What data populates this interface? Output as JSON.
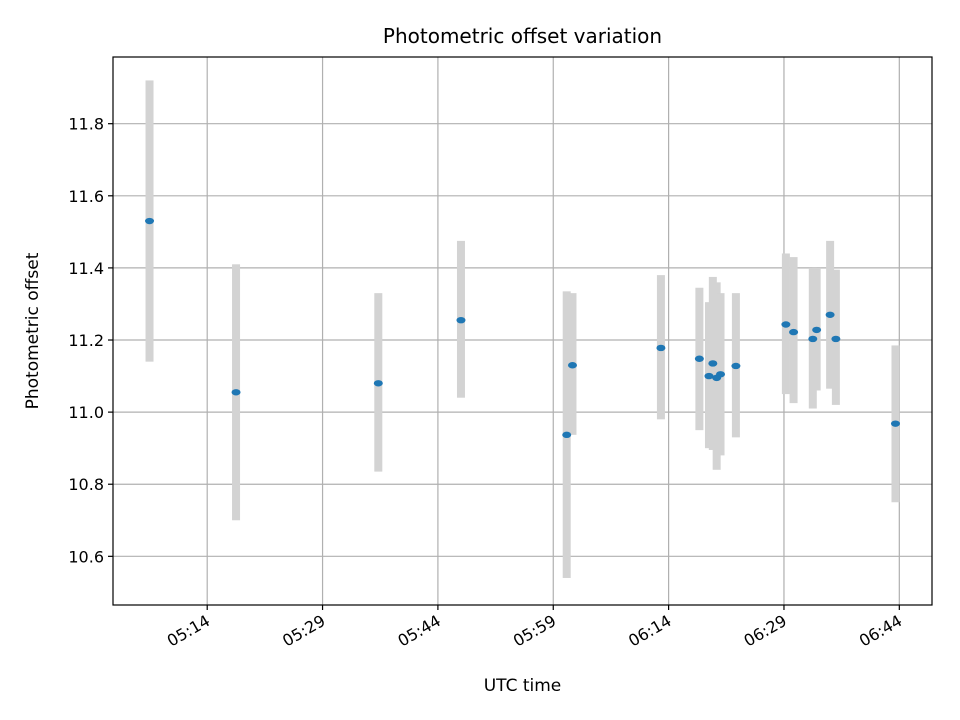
{
  "chart_data": {
    "type": "scatter",
    "title": "Photometric offset variation",
    "xlabel": "UTC time",
    "ylabel": "Photometric offset",
    "xlim": [
      "05:01:45",
      "06:48:15"
    ],
    "ylim": [
      10.465,
      11.985
    ],
    "grid": true,
    "x_ticks": [
      "05:14",
      "05:29",
      "05:44",
      "05:59",
      "06:14",
      "06:29",
      "06:44"
    ],
    "y_ticks": [
      "10.6",
      "10.8",
      "11.0",
      "11.2",
      "11.4",
      "11.6",
      "11.8"
    ],
    "points": [
      {
        "t": "05:06:30",
        "y": 11.53,
        "lo": 11.14,
        "hi": 11.92
      },
      {
        "t": "05:17:45",
        "y": 11.055,
        "lo": 10.7,
        "hi": 11.41
      },
      {
        "t": "05:36:15",
        "y": 11.08,
        "lo": 10.835,
        "hi": 11.33
      },
      {
        "t": "05:47:00",
        "y": 11.255,
        "lo": 11.04,
        "hi": 11.475
      },
      {
        "t": "06:00:45",
        "y": 10.937,
        "lo": 10.54,
        "hi": 11.335
      },
      {
        "t": "06:01:30",
        "y": 11.13,
        "lo": 10.937,
        "hi": 11.33
      },
      {
        "t": "06:13:00",
        "y": 11.178,
        "lo": 10.98,
        "hi": 11.38
      },
      {
        "t": "06:18:00",
        "y": 11.148,
        "lo": 10.95,
        "hi": 11.345
      },
      {
        "t": "06:19:15",
        "y": 11.1,
        "lo": 10.9,
        "hi": 11.305
      },
      {
        "t": "06:19:45",
        "y": 11.135,
        "lo": 10.895,
        "hi": 11.375
      },
      {
        "t": "06:20:15",
        "y": 11.095,
        "lo": 10.84,
        "hi": 11.36
      },
      {
        "t": "06:20:45",
        "y": 11.105,
        "lo": 10.88,
        "hi": 11.33
      },
      {
        "t": "06:22:45",
        "y": 11.128,
        "lo": 10.93,
        "hi": 11.33
      },
      {
        "t": "06:29:15",
        "y": 11.243,
        "lo": 11.05,
        "hi": 11.44
      },
      {
        "t": "06:30:15",
        "y": 11.222,
        "lo": 11.025,
        "hi": 11.43
      },
      {
        "t": "06:32:45",
        "y": 11.203,
        "lo": 11.01,
        "hi": 11.4
      },
      {
        "t": "06:33:15",
        "y": 11.228,
        "lo": 11.06,
        "hi": 11.4
      },
      {
        "t": "06:35:00",
        "y": 11.27,
        "lo": 11.065,
        "hi": 11.475
      },
      {
        "t": "06:35:45",
        "y": 11.203,
        "lo": 11.02,
        "hi": 11.395
      },
      {
        "t": "06:43:30",
        "y": 10.968,
        "lo": 10.75,
        "hi": 11.185
      }
    ],
    "colors": {
      "point": "#1f77b4",
      "errorbar": "#d3d3d3",
      "grid": "#b0b0b0",
      "axis": "#000000"
    }
  }
}
